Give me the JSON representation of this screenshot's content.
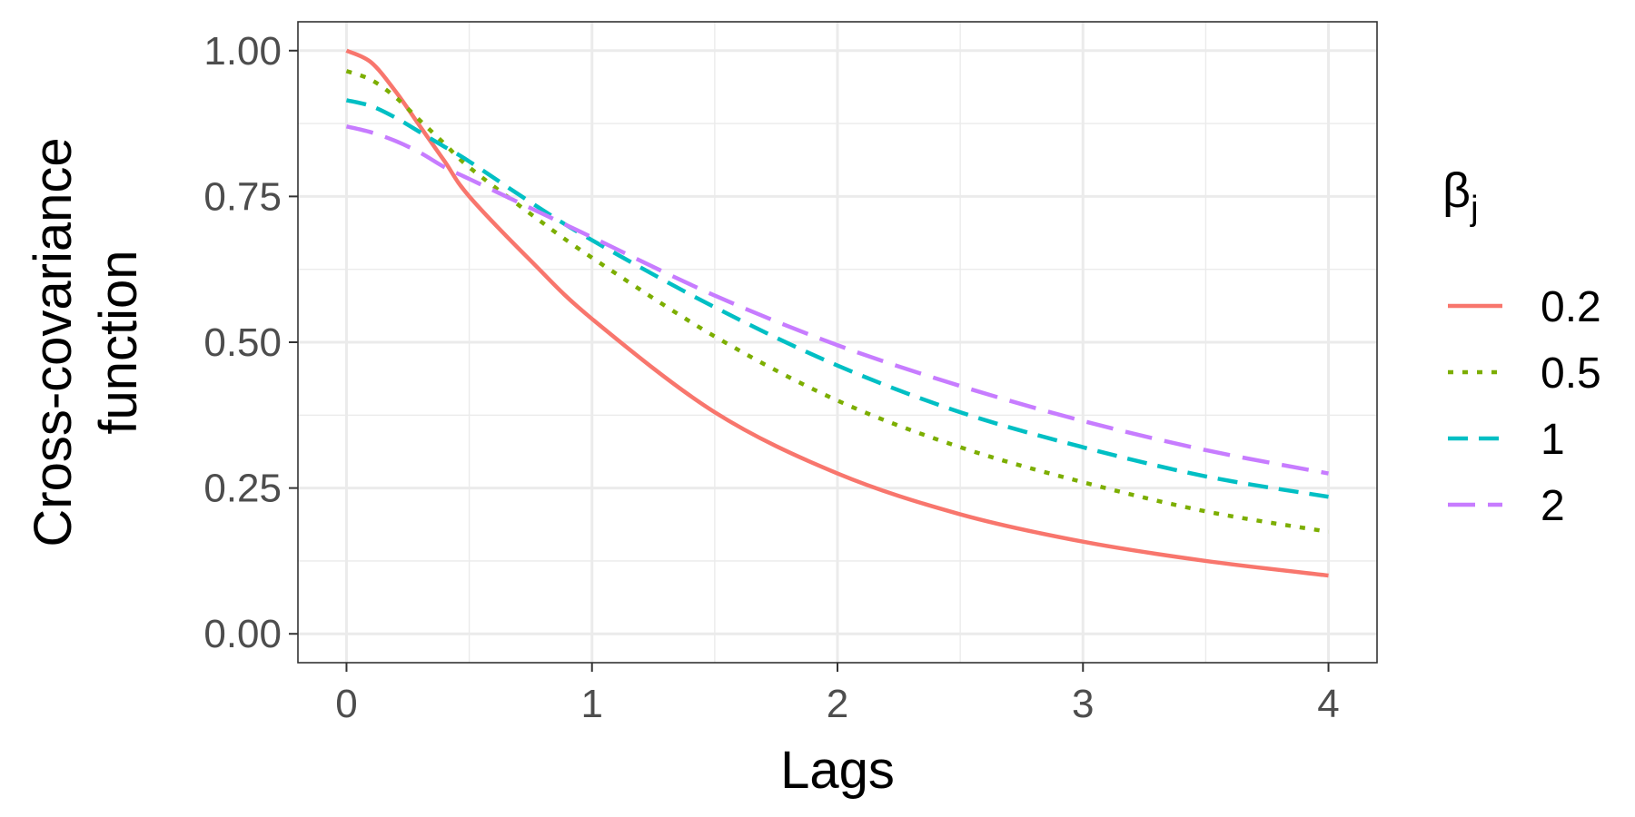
{
  "chart_data": {
    "type": "line",
    "xlabel": "Lags",
    "ylabel_lines": [
      "Cross-covariance",
      "function"
    ],
    "xlim": [
      0,
      4
    ],
    "ylim": [
      0,
      1
    ],
    "x_ticks": [
      0,
      1,
      2,
      3,
      4
    ],
    "x_tick_labels": [
      "0",
      "1",
      "2",
      "3",
      "4"
    ],
    "y_ticks": [
      0,
      0.25,
      0.5,
      0.75,
      1.0
    ],
    "y_tick_labels": [
      "0.00",
      "0.25",
      "0.50",
      "0.75",
      "1.00"
    ],
    "grid": true,
    "legend": {
      "title": "β",
      "title_subscript": "j",
      "position": "right"
    },
    "series": [
      {
        "name": "0.2",
        "color": "#F8766D",
        "dash": "solid",
        "x": [
          0,
          0.1,
          0.2,
          0.3,
          0.4,
          0.5,
          0.75,
          1.0,
          1.5,
          2.0,
          2.5,
          3.0,
          3.5,
          4.0
        ],
        "y": [
          1.0,
          0.98,
          0.93,
          0.87,
          0.81,
          0.75,
          0.64,
          0.54,
          0.38,
          0.275,
          0.205,
          0.158,
          0.125,
          0.1
        ]
      },
      {
        "name": "0.5",
        "color": "#7CAE00",
        "dash": "dotted",
        "x": [
          0,
          0.1,
          0.2,
          0.3,
          0.4,
          0.5,
          0.75,
          1.0,
          1.5,
          2.0,
          2.5,
          3.0,
          3.5,
          4.0
        ],
        "y": [
          0.965,
          0.95,
          0.92,
          0.88,
          0.84,
          0.8,
          0.72,
          0.645,
          0.51,
          0.4,
          0.32,
          0.26,
          0.21,
          0.175
        ]
      },
      {
        "name": "1",
        "color": "#00BFC4",
        "dash": "dashed",
        "x": [
          0,
          0.1,
          0.2,
          0.3,
          0.4,
          0.5,
          0.75,
          1.0,
          1.5,
          2.0,
          2.5,
          3.0,
          3.5,
          4.0
        ],
        "y": [
          0.915,
          0.905,
          0.885,
          0.86,
          0.835,
          0.81,
          0.74,
          0.675,
          0.56,
          0.46,
          0.38,
          0.32,
          0.27,
          0.235
        ]
      },
      {
        "name": "2",
        "color": "#C77CFF",
        "dash": "longdash",
        "x": [
          0,
          0.1,
          0.2,
          0.3,
          0.4,
          0.5,
          0.75,
          1.0,
          1.5,
          2.0,
          2.5,
          3.0,
          3.5,
          4.0
        ],
        "y": [
          0.87,
          0.86,
          0.845,
          0.825,
          0.8,
          0.78,
          0.73,
          0.68,
          0.58,
          0.495,
          0.425,
          0.365,
          0.315,
          0.275
        ]
      }
    ]
  }
}
